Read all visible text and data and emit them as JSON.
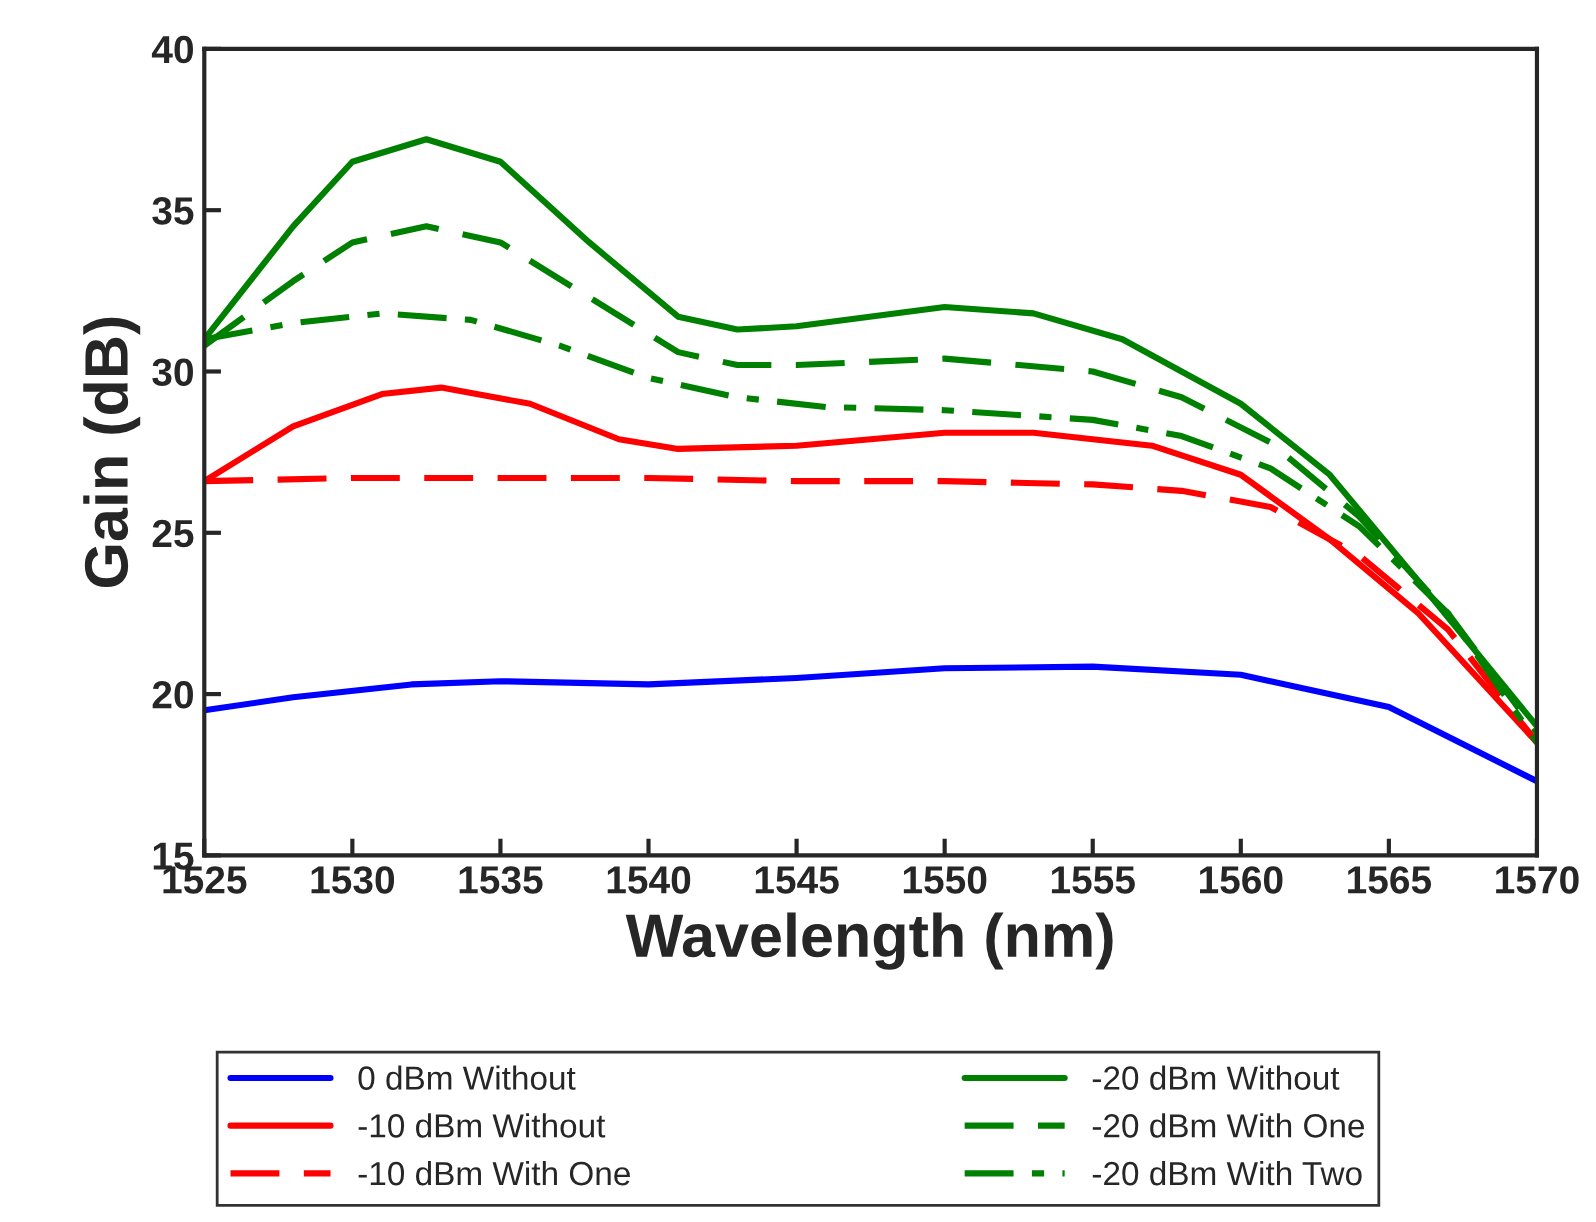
{
  "chart_data": {
    "type": "line",
    "xlabel": "Wavelength (nm)",
    "ylabel": "Gain (dB)",
    "xlim": [
      1525,
      1570
    ],
    "xticks": [
      1525,
      1530,
      1535,
      1540,
      1545,
      1550,
      1555,
      1560,
      1565,
      1570
    ],
    "ylim": [
      15,
      40
    ],
    "yticks": [
      15,
      20,
      25,
      30,
      35,
      40
    ],
    "grid": false,
    "legend": "bottom",
    "marker": "none",
    "series": [
      {
        "name": "0 dBm Without",
        "color": "#0000ff",
        "line_style": "solid",
        "x": [
          1525,
          1528,
          1532,
          1535,
          1540,
          1545,
          1550,
          1555,
          1560,
          1565,
          1570
        ],
        "values": [
          19.5,
          19.9,
          20.3,
          20.4,
          20.3,
          20.5,
          20.8,
          20.85,
          20.6,
          19.6,
          17.3
        ]
      },
      {
        "name": "-10 dBm Without",
        "color": "#ff0000",
        "line_style": "solid",
        "x": [
          1525,
          1528,
          1531,
          1533,
          1536,
          1539,
          1541,
          1545,
          1550,
          1553,
          1557,
          1560,
          1563,
          1566,
          1570
        ],
        "values": [
          26.6,
          28.3,
          29.3,
          29.5,
          29.0,
          27.9,
          27.6,
          27.7,
          28.1,
          28.1,
          27.7,
          26.8,
          24.8,
          22.5,
          18.5
        ]
      },
      {
        "name": "-10 dBm With One",
        "color": "#ff0000",
        "line_style": "dashed",
        "x": [
          1525,
          1530,
          1535,
          1540,
          1545,
          1550,
          1555,
          1558,
          1561,
          1564,
          1567,
          1570
        ],
        "values": [
          26.6,
          26.7,
          26.7,
          26.7,
          26.6,
          26.6,
          26.5,
          26.3,
          25.8,
          24.3,
          22.0,
          18.5
        ]
      },
      {
        "name": "-20 dBm Without",
        "color": "#008000",
        "line_style": "solid",
        "x": [
          1525,
          1528,
          1530,
          1532.5,
          1535,
          1538,
          1541,
          1543,
          1545,
          1550,
          1553,
          1556,
          1560,
          1563,
          1566,
          1570
        ],
        "values": [
          31.0,
          34.5,
          36.5,
          37.2,
          36.5,
          34.0,
          31.7,
          31.3,
          31.4,
          32.0,
          31.8,
          31.0,
          29.0,
          26.8,
          23.5,
          19.0
        ]
      },
      {
        "name": "-20 dBm With One",
        "color": "#008000",
        "line_style": "dashed",
        "x": [
          1525,
          1528,
          1530,
          1532.5,
          1535,
          1538,
          1541,
          1543,
          1545,
          1550,
          1555,
          1558,
          1561,
          1564,
          1567,
          1570
        ],
        "values": [
          30.8,
          32.8,
          34.0,
          34.5,
          34.0,
          32.3,
          30.6,
          30.2,
          30.2,
          30.4,
          30.0,
          29.2,
          27.8,
          25.5,
          22.5,
          18.8
        ]
      },
      {
        "name": "-20 dBm With Two",
        "color": "#008000",
        "line_style": "dashdot",
        "x": [
          1525,
          1528,
          1531,
          1534,
          1537,
          1540,
          1543,
          1546,
          1550,
          1555,
          1558,
          1561,
          1564,
          1567,
          1570
        ],
        "values": [
          31.0,
          31.5,
          31.8,
          31.6,
          30.8,
          29.8,
          29.2,
          28.9,
          28.8,
          28.5,
          28.0,
          27.0,
          25.2,
          22.5,
          18.5
        ]
      }
    ]
  }
}
